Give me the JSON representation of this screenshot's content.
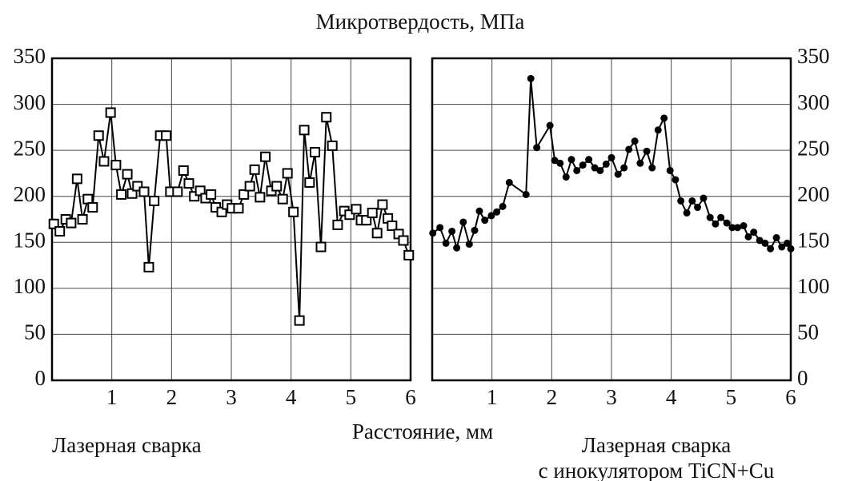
{
  "title": "Микротвердость, МПа",
  "xlabel": "Расстояние, мм",
  "chart_data": [
    {
      "type": "line",
      "label": [
        "Лазерная сварка"
      ],
      "marker": "square",
      "color": "#000000",
      "grid": true,
      "y_axis_side": "left",
      "xlim": [
        0,
        6
      ],
      "ylim": [
        0,
        350
      ],
      "xticks": [
        1,
        2,
        3,
        4,
        5,
        6
      ],
      "yticks": [
        0,
        50,
        100,
        150,
        200,
        250,
        300,
        350
      ],
      "x": [
        0.03,
        0.13,
        0.23,
        0.32,
        0.42,
        0.51,
        0.6,
        0.68,
        0.78,
        0.87,
        0.98,
        1.07,
        1.16,
        1.26,
        1.34,
        1.43,
        1.54,
        1.62,
        1.71,
        1.81,
        1.91,
        1.98,
        2.1,
        2.2,
        2.29,
        2.38,
        2.48,
        2.57,
        2.66,
        2.74,
        2.84,
        2.93,
        3.01,
        3.12,
        3.21,
        3.31,
        3.39,
        3.48,
        3.57,
        3.67,
        3.76,
        3.86,
        3.94,
        4.04,
        4.14,
        4.22,
        4.31,
        4.4,
        4.5,
        4.59,
        4.69,
        4.78,
        4.89,
        4.98,
        5.09,
        5.17,
        5.26,
        5.36,
        5.44,
        5.53,
        5.62,
        5.69,
        5.8,
        5.88,
        5.97
      ],
      "values": [
        170,
        162,
        175,
        171,
        219,
        175,
        197,
        188,
        266,
        238,
        291,
        234,
        202,
        224,
        203,
        211,
        205,
        123,
        195,
        266,
        266,
        205,
        205,
        228,
        214,
        200,
        206,
        198,
        202,
        188,
        183,
        191,
        187,
        187,
        202,
        211,
        229,
        199,
        243,
        206,
        211,
        197,
        225,
        183,
        65,
        272,
        215,
        248,
        145,
        286,
        255,
        169,
        184,
        180,
        186,
        174,
        174,
        182,
        160,
        191,
        176,
        168,
        159,
        152,
        136
      ]
    },
    {
      "type": "line",
      "label": [
        "Лазерная сварка",
        "с инокулятором TiCN+Cu"
      ],
      "marker": "circle",
      "color": "#000000",
      "grid": true,
      "y_axis_side": "right",
      "xlim": [
        0,
        6
      ],
      "ylim": [
        0,
        350
      ],
      "xticks": [
        1,
        2,
        3,
        4,
        5,
        6
      ],
      "yticks": [
        0,
        50,
        100,
        150,
        200,
        250,
        300,
        350
      ],
      "x": [
        0.01,
        0.13,
        0.23,
        0.33,
        0.41,
        0.52,
        0.62,
        0.71,
        0.79,
        0.88,
        0.99,
        1.08,
        1.18,
        1.29,
        1.57,
        1.65,
        1.75,
        1.97,
        2.05,
        2.14,
        2.24,
        2.33,
        2.42,
        2.52,
        2.62,
        2.72,
        2.81,
        2.91,
        3.0,
        3.11,
        3.21,
        3.29,
        3.39,
        3.48,
        3.59,
        3.68,
        3.78,
        3.88,
        3.98,
        4.07,
        4.16,
        4.26,
        4.35,
        4.44,
        4.54,
        4.65,
        4.74,
        4.83,
        4.93,
        5.02,
        5.11,
        5.21,
        5.29,
        5.38,
        5.48,
        5.57,
        5.66,
        5.76,
        5.85,
        5.94,
        6.0
      ],
      "values": [
        160,
        166,
        149,
        162,
        144,
        172,
        148,
        163,
        184,
        174,
        179,
        183,
        189,
        215,
        202,
        328,
        253,
        277,
        239,
        236,
        221,
        240,
        228,
        234,
        240,
        231,
        228,
        235,
        242,
        224,
        231,
        251,
        260,
        236,
        249,
        231,
        272,
        285,
        228,
        218,
        195,
        182,
        195,
        188,
        198,
        177,
        170,
        177,
        171,
        166,
        166,
        168,
        156,
        161,
        152,
        149,
        143,
        155,
        145,
        149,
        143
      ]
    }
  ]
}
